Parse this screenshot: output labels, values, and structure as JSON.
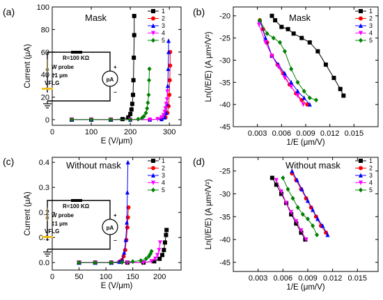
{
  "colors": [
    "#000000",
    "#ff0000",
    "#0000ff",
    "#ff00ff",
    "#008000"
  ],
  "markers": [
    "square",
    "circle",
    "triangle-up",
    "triangle-down",
    "diamond"
  ],
  "inset": {
    "resistor": "R=100 KΩ",
    "probe": "W probe",
    "gap": "‡1 μm",
    "sample": "VFLG",
    "meter": "pA",
    "plus": "+",
    "minus": "−"
  },
  "chart_data": [
    {
      "panel": "(a)",
      "type": "line",
      "title": "Mask",
      "xlabel": "E (V/μm)",
      "ylabel": "Current (μA)",
      "xlim": [
        0,
        330
      ],
      "ylim": [
        -5,
        100
      ],
      "xticks": [
        0,
        100,
        200,
        300
      ],
      "xtick_labels": [
        "0",
        "100",
        "200",
        "300"
      ],
      "yticks": [
        0,
        20,
        40,
        60,
        80,
        100
      ],
      "ytick_labels": [
        "0",
        "20",
        "40",
        "60",
        "80",
        "100"
      ],
      "legend": [
        "1",
        "2",
        "3",
        "4",
        "5"
      ],
      "series": [
        {
          "name": "1",
          "x": [
            50,
            100,
            150,
            180,
            195,
            200,
            203,
            205,
            207,
            208,
            209,
            210,
            210
          ],
          "y": [
            0,
            0,
            0,
            0.5,
            2,
            5,
            9,
            14,
            22,
            35,
            55,
            75,
            92
          ]
        },
        {
          "name": "2",
          "x": [
            50,
            100,
            150,
            200,
            250,
            280,
            290,
            295,
            298,
            300,
            301,
            302,
            302
          ],
          "y": [
            0,
            0,
            0,
            0,
            0,
            0.5,
            2,
            6,
            12,
            22,
            35,
            48,
            60
          ]
        },
        {
          "name": "3",
          "x": [
            50,
            100,
            150,
            200,
            250,
            280,
            288,
            292,
            294,
            296,
            297,
            298,
            298
          ],
          "y": [
            0,
            0,
            0,
            0,
            0,
            0.5,
            2,
            6,
            14,
            30,
            45,
            60,
            70
          ]
        },
        {
          "name": "4",
          "x": [
            50,
            100,
            150,
            200,
            250,
            270,
            280,
            285,
            288,
            290,
            292,
            294,
            295
          ],
          "y": [
            0,
            0,
            0,
            0,
            0,
            0.5,
            2,
            4,
            7,
            10,
            14,
            18,
            25
          ]
        },
        {
          "name": "5",
          "x": [
            50,
            100,
            150,
            200,
            220,
            230,
            235,
            240,
            243,
            245,
            247,
            248,
            249
          ],
          "y": [
            0,
            0,
            0,
            0,
            0.5,
            1.5,
            3,
            6,
            10,
            15,
            22,
            35,
            45
          ]
        }
      ]
    },
    {
      "panel": "(b)",
      "type": "scatter",
      "title": "Mask",
      "xlabel": "1/E (μm/V)",
      "ylabel": "Ln(I/E/E) (A μm²/V²)",
      "xlim": [
        0,
        0.018
      ],
      "ylim": [
        -45,
        -18
      ],
      "xticks": [
        0.003,
        0.006,
        0.009,
        0.012,
        0.015
      ],
      "xtick_labels": [
        "0.003",
        "0.006",
        "0.009",
        "0.012",
        "0.015"
      ],
      "yticks": [
        -45,
        -40,
        -35,
        -30,
        -25,
        -20
      ],
      "ytick_labels": [
        "-45",
        "-40",
        "-35",
        "-30",
        "-25",
        "-20"
      ],
      "legend": [
        "1",
        "2",
        "3",
        "4",
        "5"
      ],
      "series": [
        {
          "name": "1",
          "x": [
            0.0048,
            0.0052,
            0.006,
            0.0068,
            0.0075,
            0.0085,
            0.0095,
            0.0105,
            0.0115,
            0.0125,
            0.0133,
            0.0137
          ],
          "y": [
            -20,
            -21,
            -22.5,
            -23,
            -24,
            -25,
            -26,
            -28,
            -31,
            -34,
            -36.5,
            -38
          ]
        },
        {
          "name": "2",
          "x": [
            0.0033,
            0.0037,
            0.0042,
            0.0048,
            0.0055,
            0.0062,
            0.007,
            0.0078,
            0.0085,
            0.0092
          ],
          "y": [
            -21,
            -23,
            -26,
            -29,
            -31,
            -33,
            -35.5,
            -37.5,
            -39,
            -40
          ]
        },
        {
          "name": "3",
          "x": [
            0.0033,
            0.004,
            0.0048,
            0.0056,
            0.0064,
            0.0072,
            0.008,
            0.0088,
            0.0095
          ],
          "y": [
            -21,
            -25,
            -29,
            -31,
            -33,
            -35,
            -37,
            -38.5,
            -40
          ]
        },
        {
          "name": "4",
          "x": [
            0.0032,
            0.004,
            0.0048,
            0.0056,
            0.0064,
            0.0072,
            0.008,
            0.0087
          ],
          "y": [
            -22,
            -26,
            -29,
            -31.5,
            -34,
            -36,
            -38,
            -40
          ]
        },
        {
          "name": "5",
          "x": [
            0.0033,
            0.0042,
            0.005,
            0.0058,
            0.0064,
            0.0072,
            0.008,
            0.0088,
            0.0095,
            0.0103
          ],
          "y": [
            -21,
            -24,
            -25,
            -26,
            -28,
            -32,
            -35,
            -37,
            -38.5,
            -39
          ]
        }
      ]
    },
    {
      "panel": "(c)",
      "type": "line",
      "title": "Without mask",
      "xlabel": "E (V/μm)",
      "ylabel": "Current (μA)",
      "xlim": [
        0,
        240
      ],
      "ylim": [
        -0.03,
        0.42
      ],
      "xticks": [
        0,
        50,
        100,
        150,
        200
      ],
      "xtick_labels": [
        "0",
        "50",
        "100",
        "150",
        "200"
      ],
      "yticks": [
        0.0,
        0.1,
        0.2,
        0.3,
        0.4
      ],
      "ytick_labels": [
        "0.0",
        "0.1",
        "0.2",
        "0.3",
        "0.4"
      ],
      "legend": [
        "1",
        "2",
        "3",
        "4",
        "5"
      ],
      "series": [
        {
          "name": "1",
          "x": [
            50,
            80,
            110,
            140,
            170,
            190,
            200,
            205,
            208,
            210,
            212,
            213
          ],
          "y": [
            0,
            0,
            0,
            0,
            0,
            0.005,
            0.015,
            0.03,
            0.05,
            0.08,
            0.11,
            0.13
          ]
        },
        {
          "name": "2",
          "x": [
            50,
            80,
            110,
            125,
            130,
            133,
            136,
            138,
            140,
            141,
            142
          ],
          "y": [
            0,
            0,
            0,
            0.003,
            0.01,
            0.025,
            0.05,
            0.09,
            0.14,
            0.18,
            0.22
          ]
        },
        {
          "name": "3",
          "x": [
            50,
            80,
            110,
            125,
            130,
            134,
            137,
            139,
            140,
            141
          ],
          "y": [
            0,
            0,
            0,
            0.003,
            0.01,
            0.04,
            0.09,
            0.16,
            0.28,
            0.4
          ]
        },
        {
          "name": "4",
          "x": [
            50,
            80,
            110,
            140,
            170,
            185,
            192,
            196,
            199,
            201
          ],
          "y": [
            0,
            0,
            0,
            0,
            0,
            0.005,
            0.015,
            0.03,
            0.05,
            0.08
          ]
        },
        {
          "name": "5",
          "x": [
            50,
            80,
            110,
            130,
            150,
            165,
            175,
            180,
            183,
            185
          ],
          "y": [
            0,
            0,
            0,
            0.001,
            0.004,
            0.008,
            0.015,
            0.025,
            0.035,
            0.045
          ]
        }
      ]
    },
    {
      "panel": "(d)",
      "type": "scatter",
      "title": "Without mask",
      "xlabel": "1/E (μm/V)",
      "ylabel": "Ln(I/E/E) (A μm²/V²)",
      "xlim": [
        0,
        0.0175
      ],
      "ylim": [
        -47,
        -22
      ],
      "xticks": [
        0.003,
        0.006,
        0.009,
        0.012,
        0.015
      ],
      "xtick_labels": [
        "0.003",
        "0.006",
        "0.009",
        "0.012",
        "0.015"
      ],
      "yticks": [
        -45,
        -40,
        -35,
        -30,
        -25
      ],
      "ytick_labels": [
        "-45",
        "-40",
        "-35",
        "-30",
        "-25"
      ],
      "legend": [
        "1",
        "2",
        "3",
        "4",
        "5"
      ],
      "series": [
        {
          "name": "1",
          "x": [
            0.0047,
            0.0052,
            0.0058,
            0.0064,
            0.007,
            0.0076,
            0.0082,
            0.0087
          ],
          "y": [
            -26.5,
            -28,
            -30,
            -32,
            -34.5,
            -36.5,
            -38.5,
            -40
          ]
        },
        {
          "name": "2",
          "x": [
            0.0071,
            0.0076,
            0.0082,
            0.0088,
            0.0094,
            0.01,
            0.0106,
            0.0112
          ],
          "y": [
            -25.5,
            -27,
            -29,
            -31,
            -33,
            -35,
            -37,
            -38.5
          ]
        },
        {
          "name": "3",
          "x": [
            0.0071,
            0.0077,
            0.0083,
            0.009,
            0.0096,
            0.0102,
            0.0108,
            0.0114
          ],
          "y": [
            -25,
            -27,
            -29,
            -31.5,
            -33.5,
            -35.5,
            -37,
            -39
          ]
        },
        {
          "name": "4",
          "x": [
            0.0052,
            0.0058,
            0.0064,
            0.007,
            0.0076,
            0.0082,
            0.0088
          ],
          "y": [
            -27,
            -29.5,
            -32,
            -34,
            -36,
            -38,
            -40
          ]
        },
        {
          "name": "5",
          "x": [
            0.006,
            0.0066,
            0.0072,
            0.0078,
            0.0084,
            0.009,
            0.0096,
            0.0101
          ],
          "y": [
            -26.5,
            -29,
            -31,
            -33,
            -34.5,
            -35.5,
            -37,
            -39
          ]
        }
      ]
    }
  ]
}
